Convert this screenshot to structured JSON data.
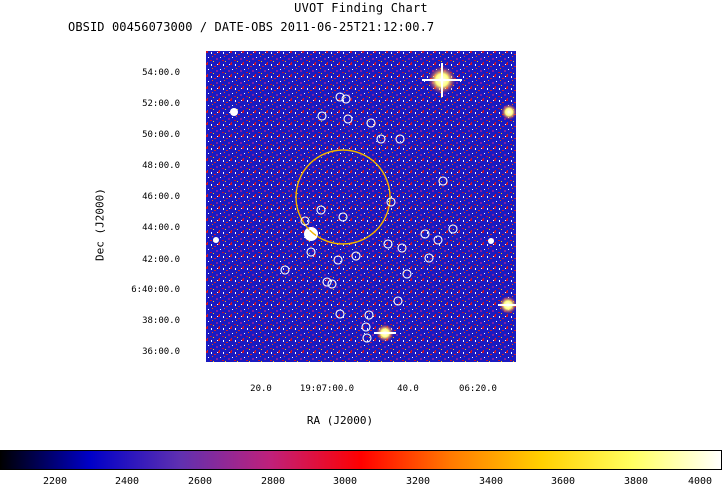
{
  "header": {
    "title": "UVOT Finding Chart",
    "subtitle": "OBSID 00456073000 / DATE-OBS 2011-06-25T21:12:00.7"
  },
  "axes": {
    "xlabel": "RA (J2000)",
    "ylabel": "Dec (J2000)",
    "yticks": [
      "54:00.0",
      "52:00.0",
      "50:00.0",
      "48:00.0",
      "46:00.0",
      "44:00.0",
      "42:00.0",
      "6:40:00.0",
      "38:00.0",
      "36:00.0"
    ],
    "xticks": [
      "20.0",
      "19:07:00.0",
      "40.0",
      "06:20.0"
    ]
  },
  "colorbar": {
    "ticks": [
      "2200",
      "2400",
      "2600",
      "2800",
      "3000",
      "3200",
      "3400",
      "3600",
      "3800",
      "4000"
    ],
    "colors": [
      "#000000",
      "#0000c8",
      "#6030b0",
      "#c0207a",
      "#ff0000",
      "#ff7a00",
      "#ffd000",
      "#ffff60",
      "#ffffff"
    ]
  },
  "style": {
    "circle_color": "#f0b400",
    "marker_color": "#ffffff"
  }
}
